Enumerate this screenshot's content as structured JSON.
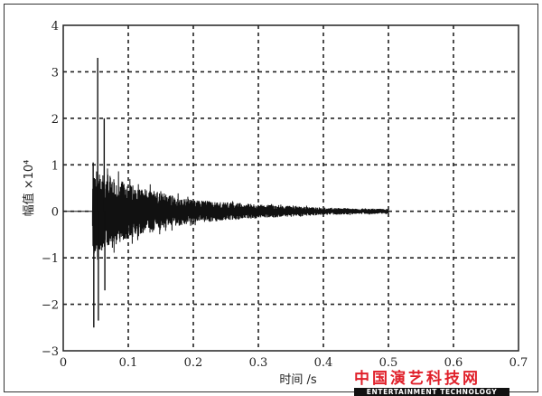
{
  "chart_data": {
    "type": "line",
    "xlabel": "时间 /s",
    "ylabel": "幅值 ×10⁴",
    "xlim": [
      0,
      0.7
    ],
    "ylim": [
      -3,
      4
    ],
    "xticks": [
      "0",
      "0.1",
      "0.2",
      "0.3",
      "0.4",
      "0.5",
      "0.6",
      "0.7"
    ],
    "yticks": [
      "4",
      "3",
      "2",
      "1",
      "0",
      "−1",
      "−2",
      "−3"
    ],
    "grid": true,
    "grid_style": "dashed",
    "line_color": "#111111",
    "signal": {
      "onset_s": 0.045,
      "end_s": 0.5,
      "spikes": [
        {
          "x": 0.046,
          "y": 1.05
        },
        {
          "x": 0.047,
          "y": -2.5
        },
        {
          "x": 0.053,
          "y": 3.3
        },
        {
          "x": 0.054,
          "y": -2.35
        },
        {
          "x": 0.063,
          "y": 2.0
        },
        {
          "x": 0.064,
          "y": -1.7
        }
      ],
      "envelope": [
        {
          "x": 0.05,
          "y": 0.9
        },
        {
          "x": 0.1,
          "y": 0.6
        },
        {
          "x": 0.15,
          "y": 0.4
        },
        {
          "x": 0.2,
          "y": 0.25
        },
        {
          "x": 0.3,
          "y": 0.15
        },
        {
          "x": 0.4,
          "y": 0.08
        },
        {
          "x": 0.5,
          "y": 0.05
        }
      ]
    }
  },
  "watermark": {
    "cn": "中国演艺科技网",
    "en": "ENTERTAINMENT TECHNOLOGY"
  }
}
